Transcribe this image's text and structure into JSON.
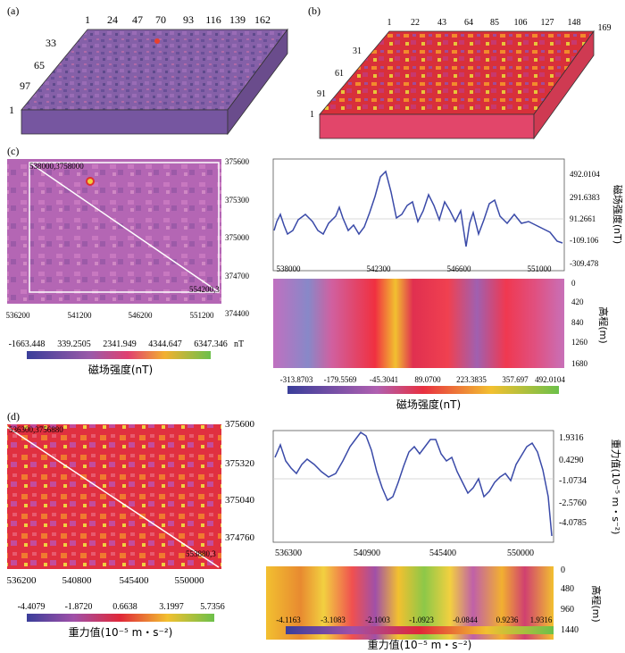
{
  "panels": {
    "a": {
      "label": "(a)",
      "top_ticks": [
        "1",
        "24",
        "47",
        "70",
        "93",
        "116",
        "139",
        "162"
      ],
      "left_ticks": [
        "33",
        "65",
        "97",
        "1"
      ],
      "colors": {
        "base": "#7f5a9e",
        "side": "#6a4c8c"
      }
    },
    "b": {
      "label": "(b)",
      "top_ticks": [
        "1",
        "22",
        "43",
        "64",
        "85",
        "106",
        "127",
        "148",
        "169"
      ],
      "left_ticks": [
        "31",
        "61",
        "91",
        "1"
      ],
      "colors": {
        "base": "#d9323a",
        "side": "#e2466a"
      }
    },
    "c_map": {
      "label": "(c)",
      "corner_label_start": "538000,3758000",
      "corner_label_end": "554200,3",
      "x_ticks": [
        "536200",
        "541200",
        "546200",
        "551200"
      ],
      "y_ticks": [
        "375600",
        "375300",
        "375000",
        "374700",
        "374400"
      ],
      "colorbar_ticks": [
        "-1663.448",
        "339.2505",
        "2341.949",
        "4344.647",
        "6347.346"
      ],
      "colorbar_unit": "nT",
      "colorbar_title": "磁场强度(nT)"
    },
    "c_profile": {
      "y_ticks": [
        "492.0104",
        "291.6383",
        "91.2661",
        "-109.106",
        "-309.478"
      ],
      "x_ticks": [
        "538000",
        "542300",
        "546600",
        "551000"
      ],
      "y_label": "磁场强度(nT)"
    },
    "c_section": {
      "depth_ticks": [
        "0",
        "420",
        "840",
        "1260",
        "1680"
      ],
      "depth_label": "高程(m)",
      "colorbar_ticks": [
        "-313.8703",
        "-179.5569",
        "-45.3041",
        "89.0700",
        "223.3835",
        "357.697",
        "492.0104"
      ],
      "colorbar_title": "磁场强度(nT)"
    },
    "d_map": {
      "label": "(d)",
      "corner_label_start": "536300,3756880",
      "corner_label_end": "553880,3",
      "x_ticks": [
        "536200",
        "540800",
        "545400",
        "550000"
      ],
      "y_ticks": [
        "375600",
        "375320",
        "375040",
        "374760"
      ],
      "colorbar_ticks": [
        "-4.4079",
        "-1.8720",
        "0.6638",
        "3.1997",
        "5.7356"
      ],
      "colorbar_title": "重力值(10⁻⁵ m・s⁻²)"
    },
    "d_profile": {
      "y_ticks": [
        "1.9316",
        "0.4290",
        "-1.0734",
        "-2.5760",
        "-4.0785"
      ],
      "x_ticks": [
        "536300",
        "540900",
        "545400",
        "550000"
      ],
      "y_label": "重力值(10⁻⁵ m・s⁻²)"
    },
    "d_section": {
      "depth_ticks": [
        "0",
        "480",
        "960",
        "1440"
      ],
      "depth_label": "高程(m)",
      "colorbar_ticks": [
        "-4.1163",
        "-3.1083",
        "-2.1003",
        "-1.0923",
        "-0.0844",
        "0.9236",
        "1.9316"
      ],
      "colorbar_title": "重力值(10⁻⁵ m・s⁻²)"
    }
  }
}
